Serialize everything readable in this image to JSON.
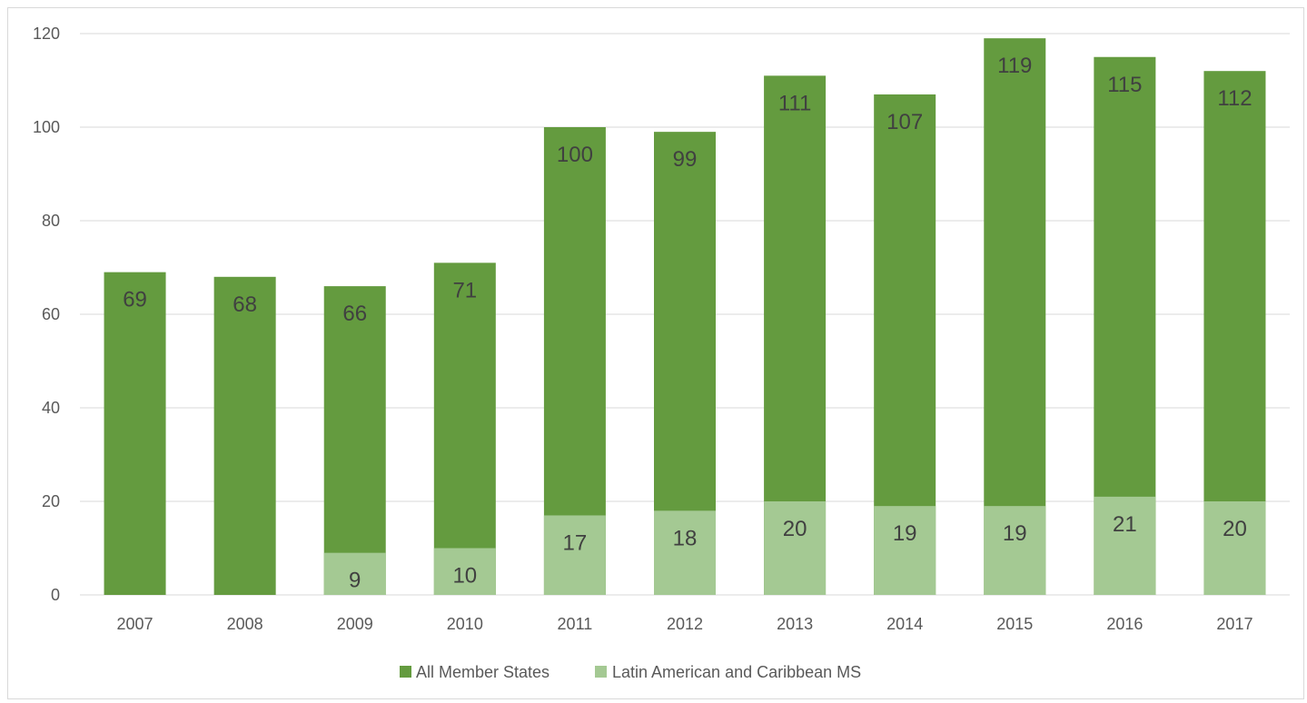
{
  "chart_data": {
    "type": "bar",
    "categories": [
      "2007",
      "2008",
      "2009",
      "2010",
      "2011",
      "2012",
      "2013",
      "2014",
      "2015",
      "2016",
      "2017"
    ],
    "series": [
      {
        "name": "All Member States",
        "values": [
          69,
          68,
          66,
          71,
          100,
          99,
          111,
          107,
          119,
          115,
          112
        ],
        "color": "#649b3f"
      },
      {
        "name": "Latin American and Caribbean MS",
        "values": [
          null,
          null,
          9,
          10,
          17,
          18,
          20,
          19,
          19,
          21,
          20
        ],
        "color": "#a4c993"
      }
    ],
    "title": "",
    "xlabel": "",
    "ylabel": "",
    "ylim": [
      0,
      120
    ],
    "yticks": [
      0,
      20,
      40,
      60,
      80,
      100,
      120
    ],
    "grid": true,
    "legend_position": "bottom",
    "gridline_color": "#d9d9d9",
    "label_color": "#404040",
    "axis_text_color": "#595959"
  }
}
